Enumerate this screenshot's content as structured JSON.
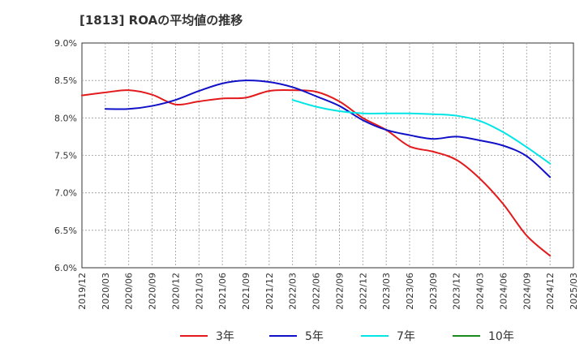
{
  "title": "[1813]  ROAの平均値の推移",
  "chart_data": {
    "type": "line",
    "y_unit": "%",
    "ylim": [
      6.0,
      9.0
    ],
    "y_ticks": [
      "6.0%",
      "6.5%",
      "7.0%",
      "7.5%",
      "8.0%",
      "8.5%",
      "9.0%"
    ],
    "x_ticks": [
      "2019/12",
      "2020/03",
      "2020/06",
      "2020/09",
      "2020/12",
      "2021/03",
      "2021/06",
      "2021/09",
      "2021/12",
      "2022/03",
      "2022/06",
      "2022/09",
      "2022/12",
      "2023/03",
      "2023/06",
      "2023/09",
      "2023/12",
      "2024/03",
      "2024/06",
      "2024/09",
      "2024/12",
      "2025/03"
    ],
    "grid": true,
    "legend_position": "bottom",
    "series": [
      {
        "name": "3年",
        "color": "#e31a1c",
        "x": [
          "2019/12",
          "2020/03",
          "2020/06",
          "2020/09",
          "2020/12",
          "2021/03",
          "2021/06",
          "2021/09",
          "2021/12",
          "2022/03",
          "2022/06",
          "2022/09",
          "2022/12",
          "2023/03",
          "2023/06",
          "2023/09",
          "2023/12",
          "2024/03",
          "2024/06",
          "2024/09",
          "2024/12"
        ],
        "values": [
          8.3,
          8.34,
          8.37,
          8.31,
          8.18,
          8.22,
          8.26,
          8.27,
          8.36,
          8.37,
          8.35,
          8.22,
          8.0,
          7.84,
          7.62,
          7.55,
          7.44,
          7.19,
          6.85,
          6.43,
          6.16
        ]
      },
      {
        "name": "5年",
        "color": "#1010c8",
        "x": [
          "2020/03",
          "2020/06",
          "2020/09",
          "2020/12",
          "2021/03",
          "2021/06",
          "2021/09",
          "2021/12",
          "2022/03",
          "2022/06",
          "2022/09",
          "2022/12",
          "2023/03",
          "2023/06",
          "2023/09",
          "2023/12",
          "2024/03",
          "2024/06",
          "2024/09",
          "2024/12"
        ],
        "values": [
          8.12,
          8.12,
          8.16,
          8.24,
          8.36,
          8.46,
          8.5,
          8.48,
          8.41,
          8.29,
          8.16,
          7.97,
          7.84,
          7.77,
          7.72,
          7.75,
          7.7,
          7.63,
          7.49,
          7.21
        ]
      },
      {
        "name": "7年",
        "color": "#00e5e5",
        "x": [
          "2022/03",
          "2022/06",
          "2022/09",
          "2022/12",
          "2023/03",
          "2023/06",
          "2023/09",
          "2023/12",
          "2024/03",
          "2024/06",
          "2024/09",
          "2024/12"
        ],
        "values": [
          8.24,
          8.15,
          8.09,
          8.06,
          8.06,
          8.06,
          8.05,
          8.03,
          7.96,
          7.81,
          7.61,
          7.39
        ]
      },
      {
        "name": "10年",
        "color": "#1a8a1a",
        "x": [],
        "values": []
      }
    ]
  }
}
